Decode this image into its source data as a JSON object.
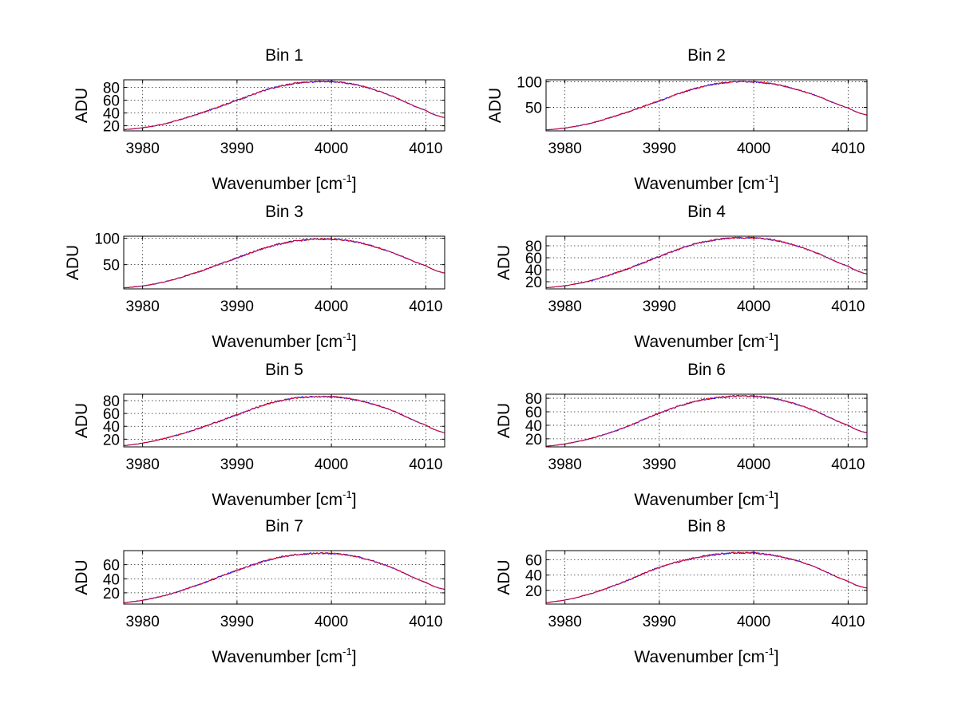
{
  "figure": {
    "background": "#ffffff"
  },
  "chart_data": [
    {
      "type": "line",
      "title": "Bin 1",
      "xlabel": "Wavenumber [cm",
      "xlabel_sup": "-1",
      "xlabel_close": "]",
      "ylabel": "ADU",
      "xlim": [
        3978,
        4012
      ],
      "ylim": [
        12,
        92
      ],
      "xticks": [
        3980,
        3990,
        4000,
        4010
      ],
      "xtick_labels": [
        "3980",
        "3990",
        "4000",
        "4010"
      ],
      "yticks": [
        20,
        40,
        60,
        80
      ],
      "ytick_labels": [
        "20",
        "40",
        "60",
        "80"
      ],
      "grid": true,
      "series": [
        {
          "name": "blue",
          "color": "#0000ff",
          "x": [
            3978,
            3982,
            3986,
            3990,
            3994,
            3998,
            4002,
            4006,
            4010,
            4012
          ],
          "y": [
            14,
            22,
            39,
            60,
            80,
            89,
            86,
            69,
            44,
            33
          ]
        },
        {
          "name": "red",
          "color": "#ff0000",
          "x": [
            3978,
            3982,
            3986,
            3990,
            3994,
            3998,
            4002,
            4006,
            4010,
            4012
          ],
          "y": [
            14,
            22,
            39,
            60,
            80,
            89,
            86,
            69,
            44,
            33
          ]
        }
      ]
    },
    {
      "type": "line",
      "title": "Bin 2",
      "xlabel": "Wavenumber [cm",
      "xlabel_sup": "-1",
      "xlabel_close": "]",
      "ylabel": "ADU",
      "xlim": [
        3978,
        4012
      ],
      "ylim": [
        4,
        104
      ],
      "xticks": [
        3980,
        3990,
        4000,
        4010
      ],
      "xtick_labels": [
        "3980",
        "3990",
        "4000",
        "4010"
      ],
      "yticks": [
        50,
        100
      ],
      "ytick_labels": [
        "50",
        "100"
      ],
      "grid": true,
      "series": [
        {
          "name": "blue",
          "color": "#0000ff",
          "x": [
            3978,
            3982,
            3986,
            3990,
            3994,
            3998,
            4002,
            4006,
            4010,
            4012
          ],
          "y": [
            6,
            16,
            37,
            63,
            88,
            100,
            96,
            77,
            49,
            35
          ]
        },
        {
          "name": "red",
          "color": "#ff0000",
          "x": [
            3978,
            3982,
            3986,
            3990,
            3994,
            3998,
            4002,
            4006,
            4010,
            4012
          ],
          "y": [
            6,
            16,
            37,
            63,
            88,
            100,
            96,
            77,
            49,
            35
          ]
        }
      ]
    },
    {
      "type": "line",
      "title": "Bin 3",
      "xlabel": "Wavenumber [cm",
      "xlabel_sup": "-1",
      "xlabel_close": "]",
      "ylabel": "ADU",
      "xlim": [
        3978,
        4012
      ],
      "ylim": [
        4,
        104
      ],
      "xticks": [
        3980,
        3990,
        4000,
        4010
      ],
      "xtick_labels": [
        "3980",
        "3990",
        "4000",
        "4010"
      ],
      "yticks": [
        50,
        100
      ],
      "ytick_labels": [
        "50",
        "100"
      ],
      "grid": true,
      "series": [
        {
          "name": "blue",
          "color": "#0000ff",
          "x": [
            3978,
            3982,
            3986,
            3990,
            3994,
            3998,
            4002,
            4006,
            4010,
            4012
          ],
          "y": [
            6,
            16,
            37,
            63,
            87,
            98,
            95,
            76,
            48,
            34
          ]
        },
        {
          "name": "red",
          "color": "#ff0000",
          "x": [
            3978,
            3982,
            3986,
            3990,
            3994,
            3998,
            4002,
            4006,
            4010,
            4012
          ],
          "y": [
            6,
            16,
            37,
            63,
            87,
            98,
            95,
            76,
            48,
            34
          ]
        }
      ]
    },
    {
      "type": "line",
      "title": "Bin 4",
      "xlabel": "Wavenumber [cm",
      "xlabel_sup": "-1",
      "xlabel_close": "]",
      "ylabel": "ADU",
      "xlim": [
        3978,
        4012
      ],
      "ylim": [
        8,
        96
      ],
      "xticks": [
        3980,
        3990,
        4000,
        4010
      ],
      "xtick_labels": [
        "3980",
        "3990",
        "4000",
        "4010"
      ],
      "yticks": [
        20,
        40,
        60,
        80
      ],
      "ytick_labels": [
        "20",
        "40",
        "60",
        "80"
      ],
      "grid": true,
      "series": [
        {
          "name": "blue",
          "color": "#0000ff",
          "x": [
            3978,
            3982,
            3986,
            3990,
            3994,
            3998,
            4002,
            4006,
            4010,
            4012
          ],
          "y": [
            10,
            19,
            38,
            62,
            84,
            93,
            90,
            72,
            46,
            33
          ]
        },
        {
          "name": "red",
          "color": "#ff0000",
          "x": [
            3978,
            3982,
            3986,
            3990,
            3994,
            3998,
            4002,
            4006,
            4010,
            4012
          ],
          "y": [
            10,
            19,
            38,
            62,
            84,
            93,
            90,
            72,
            46,
            33
          ]
        }
      ]
    },
    {
      "type": "line",
      "title": "Bin 5",
      "xlabel": "Wavenumber [cm",
      "xlabel_sup": "-1",
      "xlabel_close": "]",
      "ylabel": "ADU",
      "xlim": [
        3978,
        4012
      ],
      "ylim": [
        8,
        90
      ],
      "xticks": [
        3980,
        3990,
        4000,
        4010
      ],
      "xtick_labels": [
        "3980",
        "3990",
        "4000",
        "4010"
      ],
      "yticks": [
        20,
        40,
        60,
        80
      ],
      "ytick_labels": [
        "20",
        "40",
        "60",
        "80"
      ],
      "grid": true,
      "series": [
        {
          "name": "blue",
          "color": "#0000ff",
          "x": [
            3978,
            3982,
            3986,
            3990,
            3994,
            3998,
            4002,
            4006,
            4010,
            4012
          ],
          "y": [
            10,
            20,
            37,
            58,
            78,
            86,
            83,
            67,
            42,
            30
          ]
        },
        {
          "name": "red",
          "color": "#ff0000",
          "x": [
            3978,
            3982,
            3986,
            3990,
            3994,
            3998,
            4002,
            4006,
            4010,
            4012
          ],
          "y": [
            10,
            20,
            37,
            58,
            78,
            86,
            83,
            67,
            42,
            30
          ]
        }
      ]
    },
    {
      "type": "line",
      "title": "Bin 6",
      "xlabel": "Wavenumber [cm",
      "xlabel_sup": "-1",
      "xlabel_close": "]",
      "ylabel": "ADU",
      "xlim": [
        3978,
        4012
      ],
      "ylim": [
        8,
        86
      ],
      "xticks": [
        3980,
        3990,
        4000,
        4010
      ],
      "xtick_labels": [
        "3980",
        "3990",
        "4000",
        "4010"
      ],
      "yticks": [
        20,
        40,
        60,
        80
      ],
      "ytick_labels": [
        "20",
        "40",
        "60",
        "80"
      ],
      "grid": true,
      "series": [
        {
          "name": "blue",
          "color": "#0000ff",
          "x": [
            3978,
            3982,
            3986,
            3990,
            3994,
            3998,
            4002,
            4006,
            4010,
            4012
          ],
          "y": [
            9,
            18,
            35,
            58,
            76,
            83,
            80,
            64,
            40,
            29
          ]
        },
        {
          "name": "red",
          "color": "#ff0000",
          "x": [
            3978,
            3982,
            3986,
            3990,
            3994,
            3998,
            4002,
            4006,
            4010,
            4012
          ],
          "y": [
            9,
            18,
            35,
            58,
            76,
            83,
            80,
            64,
            40,
            29
          ]
        }
      ]
    },
    {
      "type": "line",
      "title": "Bin 7",
      "xlabel": "Wavenumber [cm",
      "xlabel_sup": "-1",
      "xlabel_close": "]",
      "ylabel": "ADU",
      "xlim": [
        3978,
        4012
      ],
      "ylim": [
        4,
        80
      ],
      "xticks": [
        3980,
        3990,
        4000,
        4010
      ],
      "xtick_labels": [
        "3980",
        "3990",
        "4000",
        "4010"
      ],
      "yticks": [
        20,
        40,
        60
      ],
      "ytick_labels": [
        "20",
        "40",
        "60"
      ],
      "grid": true,
      "series": [
        {
          "name": "blue",
          "color": "#0000ff",
          "x": [
            3978,
            3982,
            3986,
            3990,
            3994,
            3998,
            4002,
            4006,
            4010,
            4012
          ],
          "y": [
            6,
            15,
            32,
            52,
            69,
            76,
            73,
            58,
            35,
            25
          ]
        },
        {
          "name": "red",
          "color": "#ff0000",
          "x": [
            3978,
            3982,
            3986,
            3990,
            3994,
            3998,
            4002,
            4006,
            4010,
            4012
          ],
          "y": [
            6,
            15,
            32,
            52,
            69,
            76,
            73,
            58,
            35,
            25
          ]
        }
      ]
    },
    {
      "type": "line",
      "title": "Bin 8",
      "xlabel": "Wavenumber [cm",
      "xlabel_sup": "-1",
      "xlabel_close": "]",
      "ylabel": "ADU",
      "xlim": [
        3978,
        4012
      ],
      "ylim": [
        2,
        72
      ],
      "xticks": [
        3980,
        3990,
        4000,
        4010
      ],
      "xtick_labels": [
        "3980",
        "3990",
        "4000",
        "4010"
      ],
      "yticks": [
        20,
        40,
        60
      ],
      "ytick_labels": [
        "20",
        "40",
        "60"
      ],
      "grid": true,
      "series": [
        {
          "name": "blue",
          "color": "#0000ff",
          "x": [
            3978,
            3982,
            3986,
            3990,
            3994,
            3998,
            4002,
            4006,
            4010,
            4012
          ],
          "y": [
            4,
            13,
            30,
            50,
            63,
            69,
            66,
            53,
            32,
            23
          ]
        },
        {
          "name": "red",
          "color": "#ff0000",
          "x": [
            3978,
            3982,
            3986,
            3990,
            3994,
            3998,
            4002,
            4006,
            4010,
            4012
          ],
          "y": [
            4,
            13,
            30,
            50,
            63,
            69,
            66,
            53,
            32,
            23
          ]
        }
      ]
    }
  ]
}
